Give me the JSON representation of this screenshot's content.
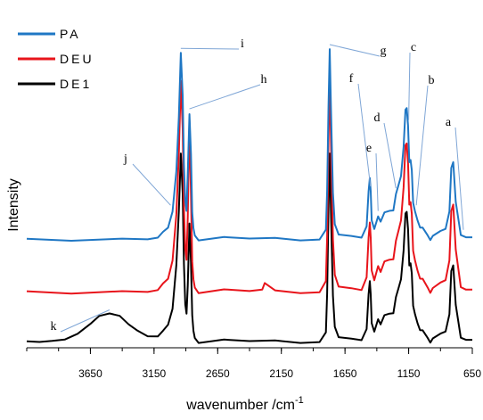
{
  "chart_data": {
    "type": "line",
    "xlabel": "wavenumber /cm",
    "xlabel_sup": "-1",
    "ylabel": "Intensity",
    "xlim": [
      4150,
      650
    ],
    "ylim": [
      0,
      1
    ],
    "x_reversed": true,
    "grid": false,
    "legend_position": "top-left",
    "xticks": [
      3650,
      3150,
      2650,
      2150,
      1650,
      1150,
      650
    ],
    "xtick_labels": [
      "3650",
      "3150",
      "2650",
      "2150",
      "1650",
      "1150",
      "650"
    ],
    "series": [
      {
        "name": "PA",
        "color": "#1F77C4",
        "x": [
          4150,
          3800,
          3400,
          3200,
          3120,
          3080,
          3040,
          3005,
          2975,
          2955,
          2940,
          2925,
          2915,
          2905,
          2895,
          2885,
          2872,
          2860,
          2850,
          2840,
          2830,
          2800,
          2600,
          2400,
          2200,
          2000,
          1850,
          1800,
          1790,
          1780,
          1770,
          1760,
          1745,
          1730,
          1700,
          1600,
          1520,
          1480,
          1465,
          1455,
          1448,
          1440,
          1420,
          1390,
          1370,
          1340,
          1300,
          1270,
          1250,
          1230,
          1210,
          1190,
          1175,
          1165,
          1155,
          1145,
          1135,
          1125,
          1115,
          1100,
          1080,
          1060,
          1040,
          1000,
          980,
          960,
          900,
          860,
          830,
          815,
          800,
          780,
          740,
          700,
          650
        ],
        "y": [
          0.0,
          0.0,
          0.0,
          0.0,
          0.01,
          0.03,
          0.06,
          0.15,
          0.35,
          0.65,
          0.98,
          0.75,
          0.4,
          0.2,
          0.15,
          0.35,
          0.66,
          0.45,
          0.15,
          0.05,
          0.02,
          0.0,
          0.01,
          0.0,
          0.01,
          0.0,
          0.0,
          0.05,
          0.25,
          0.7,
          1.0,
          0.7,
          0.25,
          0.08,
          0.02,
          0.01,
          0.01,
          0.06,
          0.25,
          0.33,
          0.25,
          0.1,
          0.06,
          0.12,
          0.1,
          0.14,
          0.15,
          0.16,
          0.24,
          0.28,
          0.33,
          0.48,
          0.68,
          0.7,
          0.6,
          0.4,
          0.42,
          0.36,
          0.2,
          0.15,
          0.1,
          0.06,
          0.05,
          0.02,
          0.0,
          0.02,
          0.04,
          0.06,
          0.15,
          0.38,
          0.4,
          0.2,
          0.02,
          0.0,
          0.0
        ]
      },
      {
        "name": "DEU",
        "color": "#E8141B",
        "x": [
          4150,
          3800,
          3400,
          3200,
          3120,
          3080,
          3040,
          3005,
          2975,
          2955,
          2940,
          2925,
          2915,
          2905,
          2895,
          2885,
          2872,
          2860,
          2850,
          2840,
          2830,
          2800,
          2600,
          2400,
          2300,
          2280,
          2200,
          2000,
          1850,
          1800,
          1790,
          1780,
          1770,
          1760,
          1745,
          1730,
          1700,
          1600,
          1520,
          1480,
          1465,
          1455,
          1448,
          1440,
          1420,
          1390,
          1370,
          1340,
          1300,
          1270,
          1250,
          1230,
          1210,
          1190,
          1175,
          1165,
          1155,
          1145,
          1135,
          1125,
          1115,
          1100,
          1080,
          1060,
          1040,
          1000,
          980,
          960,
          900,
          860,
          830,
          815,
          800,
          780,
          740,
          700,
          650
        ],
        "y": [
          0.0,
          0.0,
          0.0,
          0.0,
          0.01,
          0.03,
          0.06,
          0.15,
          0.35,
          0.65,
          0.98,
          0.75,
          0.4,
          0.2,
          0.15,
          0.35,
          0.8,
          0.45,
          0.15,
          0.05,
          0.02,
          0.0,
          0.01,
          0.0,
          0.01,
          0.03,
          0.01,
          0.0,
          0.0,
          0.05,
          0.25,
          0.7,
          1.0,
          0.7,
          0.25,
          0.08,
          0.02,
          0.01,
          0.01,
          0.06,
          0.25,
          0.33,
          0.25,
          0.1,
          0.06,
          0.12,
          0.1,
          0.14,
          0.15,
          0.16,
          0.24,
          0.28,
          0.33,
          0.48,
          0.68,
          0.7,
          0.6,
          0.4,
          0.42,
          0.36,
          0.2,
          0.15,
          0.1,
          0.06,
          0.05,
          0.02,
          0.0,
          0.02,
          0.04,
          0.06,
          0.15,
          0.38,
          0.4,
          0.2,
          0.02,
          0.0,
          0.0
        ]
      },
      {
        "name": "DE1",
        "color": "#000000",
        "x": [
          4150,
          4050,
          3950,
          3850,
          3750,
          3650,
          3580,
          3500,
          3420,
          3350,
          3280,
          3200,
          3120,
          3080,
          3040,
          3005,
          2975,
          2955,
          2940,
          2925,
          2915,
          2905,
          2895,
          2885,
          2872,
          2860,
          2850,
          2840,
          2830,
          2800,
          2600,
          2400,
          2200,
          2000,
          1850,
          1800,
          1790,
          1780,
          1770,
          1760,
          1745,
          1730,
          1700,
          1600,
          1520,
          1480,
          1465,
          1455,
          1448,
          1440,
          1420,
          1390,
          1370,
          1340,
          1300,
          1270,
          1250,
          1230,
          1210,
          1190,
          1175,
          1165,
          1155,
          1145,
          1135,
          1125,
          1115,
          1100,
          1080,
          1060,
          1040,
          1000,
          980,
          960,
          900,
          860,
          830,
          815,
          800,
          780,
          740,
          700,
          650
        ],
        "y": [
          0.0,
          0.0,
          0.01,
          0.02,
          0.05,
          0.1,
          0.14,
          0.15,
          0.13,
          0.09,
          0.05,
          0.03,
          0.03,
          0.05,
          0.09,
          0.18,
          0.4,
          0.7,
          1.0,
          0.78,
          0.42,
          0.2,
          0.15,
          0.3,
          0.63,
          0.42,
          0.15,
          0.05,
          0.02,
          0.0,
          0.01,
          0.0,
          0.01,
          0.0,
          0.0,
          0.05,
          0.25,
          0.7,
          1.0,
          0.7,
          0.25,
          0.08,
          0.02,
          0.01,
          0.01,
          0.06,
          0.25,
          0.33,
          0.25,
          0.1,
          0.06,
          0.12,
          0.1,
          0.14,
          0.15,
          0.16,
          0.24,
          0.28,
          0.33,
          0.48,
          0.68,
          0.7,
          0.6,
          0.4,
          0.42,
          0.36,
          0.2,
          0.15,
          0.1,
          0.06,
          0.05,
          0.02,
          0.0,
          0.02,
          0.04,
          0.06,
          0.15,
          0.38,
          0.4,
          0.2,
          0.02,
          0.0,
          0.0
        ]
      }
    ],
    "annotations": [
      {
        "text": "a",
        "x": 720
      },
      {
        "text": "b",
        "x": 1090
      },
      {
        "text": "c",
        "x": 1150
      },
      {
        "text": "d",
        "x": 1250
      },
      {
        "text": "e",
        "x": 1390
      },
      {
        "text": "f",
        "x": 1450
      },
      {
        "text": "g",
        "x": 1770
      },
      {
        "text": "h",
        "x": 2872
      },
      {
        "text": "i",
        "x": 2940
      },
      {
        "text": "j",
        "x": 3020
      },
      {
        "text": "k",
        "x": 3500
      }
    ]
  }
}
